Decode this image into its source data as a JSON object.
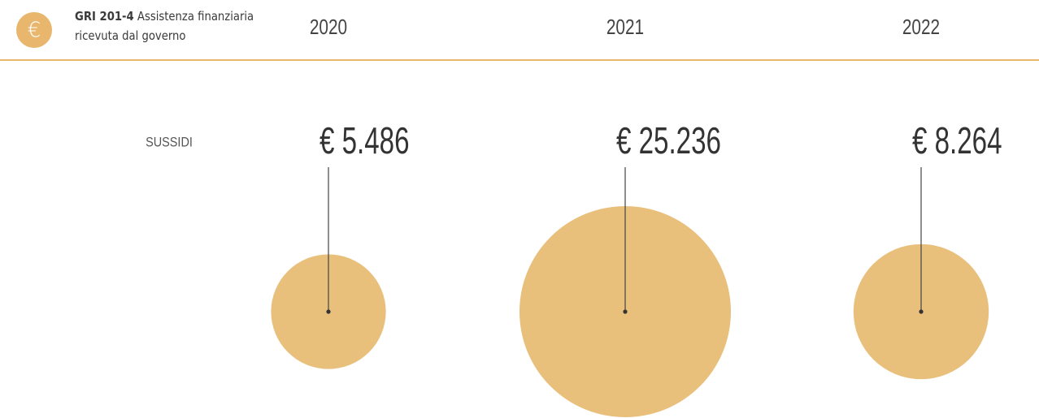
{
  "chart_data": {
    "type": "bubble",
    "icon": "€",
    "title": "GRI 201-4",
    "subtitle": "Assistenza finanziaria ricevuta dal governo",
    "categories": [
      "2020",
      "2021",
      "2022"
    ],
    "series": [
      {
        "name": "SUSSIDI",
        "color": "#e8bf7b",
        "values": [
          5486,
          25236,
          8264
        ],
        "value_labels": [
          "€ 5.486",
          "€ 25.236",
          "€ 8.264"
        ]
      }
    ]
  }
}
